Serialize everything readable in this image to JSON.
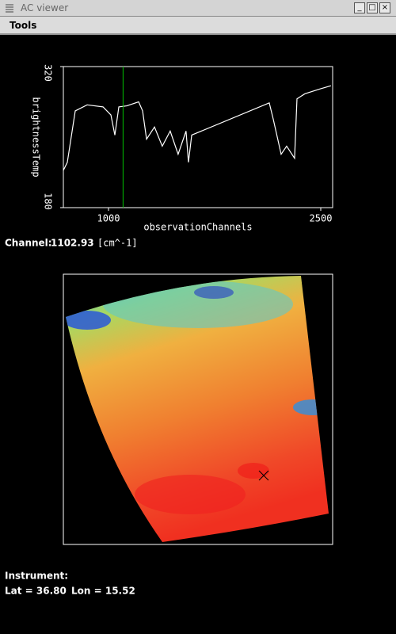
{
  "window": {
    "title": "AC viewer",
    "menu": [
      "Tools"
    ]
  },
  "chart_data": {
    "type": "line",
    "x": [
      681,
      709,
      765,
      849,
      961,
      1017,
      1045,
      1073,
      1129,
      1213,
      1241,
      1269,
      1325,
      1380,
      1436,
      1492,
      1548,
      1565,
      1588,
      2136,
      2164,
      2220,
      2259,
      2315,
      2332,
      2388,
      2500,
      2572
    ],
    "series": [
      {
        "color": "#ffffff",
        "values": [
          217,
          225,
          276,
          282,
          280,
          272,
          252,
          280,
          281,
          285,
          276,
          248,
          260,
          241,
          256,
          233,
          256,
          225,
          252,
          284,
          268,
          233,
          241,
          229,
          288,
          293,
          298,
          301
        ]
      }
    ],
    "y_label": "brightnessTemp",
    "x_label": "observationChannels",
    "xlim": [
      681,
      2584
    ],
    "xticks": [
      1000,
      2500
    ],
    "ylim": [
      180,
      320
    ],
    "yticks": [
      180,
      320
    ],
    "marker_color": "#00c000"
  },
  "channel": {
    "label": "Channel:",
    "value": 1102.93,
    "unit": "[cm^-1]"
  },
  "info": {
    "instrument": "Instrument:",
    "lat": "Lat = 36.80",
    "lon": "Lon = 15.52"
  }
}
